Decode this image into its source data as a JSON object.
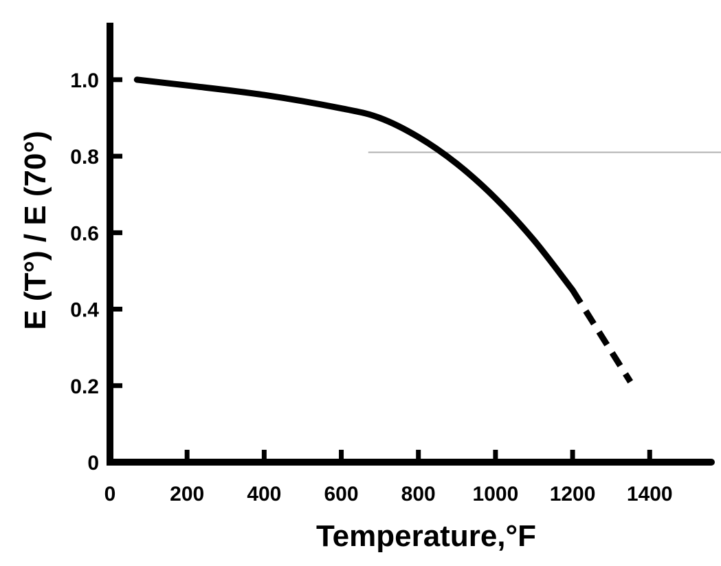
{
  "chart_data": {
    "type": "line",
    "title": "",
    "xlabel": "Temperature,°F",
    "ylabel": "E (T°) / E (70°)",
    "xlim": [
      0,
      1560
    ],
    "ylim": [
      0,
      1.14
    ],
    "x_ticks": [
      0,
      200,
      400,
      600,
      800,
      1000,
      1200,
      1400
    ],
    "x_tick_labels": [
      "0",
      "200",
      "400",
      "600",
      "800",
      "1000",
      "1200",
      "1400"
    ],
    "y_ticks": [
      0,
      0.2,
      0.4,
      0.6,
      0.8,
      1.0
    ],
    "y_tick_labels": [
      "0",
      "0.2",
      "0.4",
      "0.6",
      "0.8",
      "1.0"
    ],
    "grid": false,
    "legend": "none",
    "series": [
      {
        "style": "solid",
        "x": [
          70,
          200,
          400,
          600,
          700,
          800,
          900,
          1000,
          1100,
          1200
        ],
        "y": [
          1.0,
          0.985,
          0.96,
          0.925,
          0.9,
          0.85,
          0.78,
          0.69,
          0.58,
          0.45
        ]
      },
      {
        "style": "dashed",
        "x": [
          1200,
          1250,
          1300,
          1350
        ],
        "y": [
          0.45,
          0.37,
          0.29,
          0.21
        ]
      }
    ],
    "reference_line": {
      "y": 0.81,
      "x_start": 670,
      "color": "#b0b0b0"
    }
  }
}
